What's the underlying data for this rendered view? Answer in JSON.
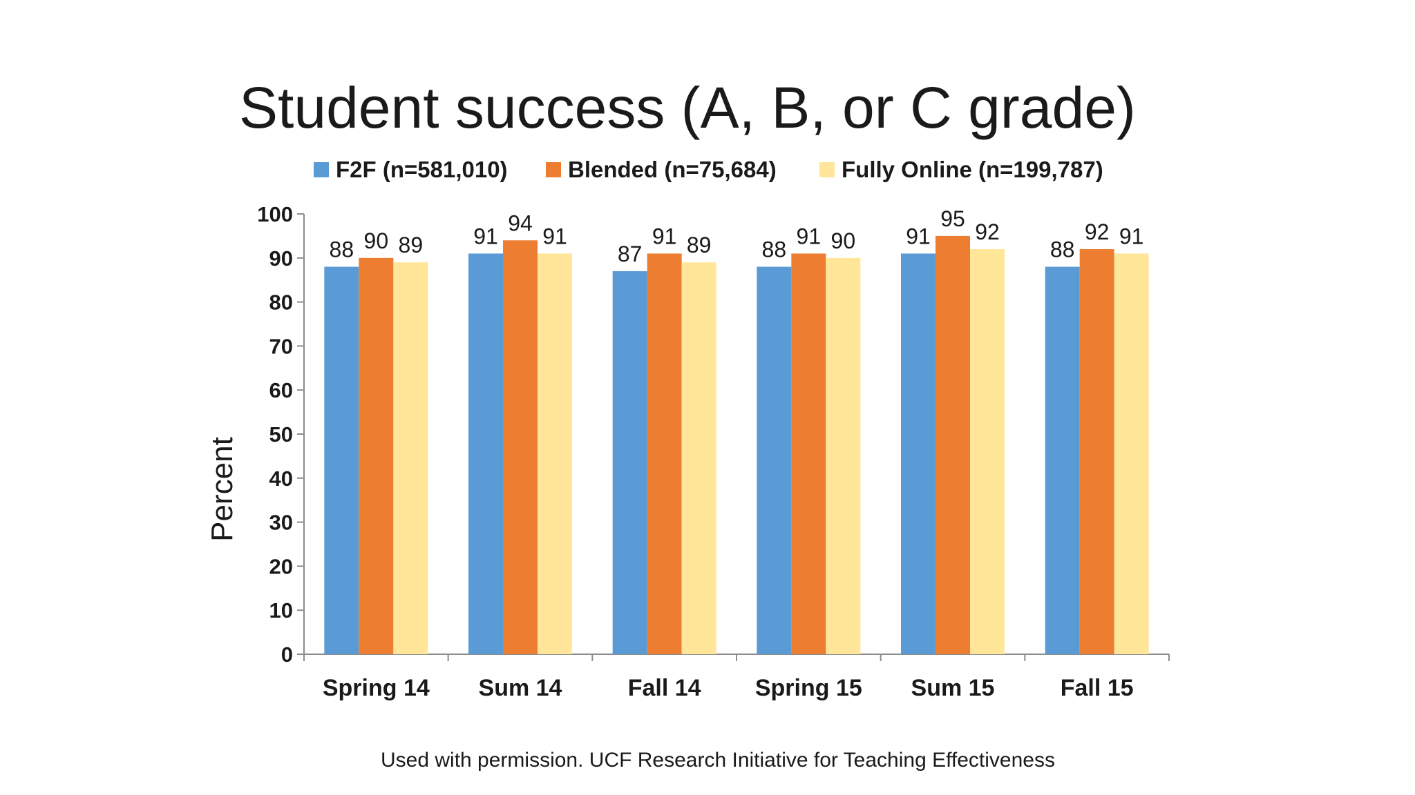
{
  "chart_data": {
    "type": "bar",
    "title": "Student success (A, B, or C grade)",
    "ylabel": "Percent",
    "xlabel": "",
    "ylim": [
      0,
      100
    ],
    "yticks": [
      0,
      10,
      20,
      30,
      40,
      50,
      60,
      70,
      80,
      90,
      100
    ],
    "categories": [
      "Spring 14",
      "Sum 14",
      "Fall 14",
      "Spring 15",
      "Sum 15",
      "Fall 15"
    ],
    "series": [
      {
        "name": "F2F (n=581,010)",
        "color": "#5B9BD5",
        "values": [
          88,
          91,
          87,
          88,
          91,
          88
        ]
      },
      {
        "name": "Blended (n=75,684)",
        "color": "#ED7D31",
        "values": [
          90,
          94,
          91,
          91,
          95,
          92
        ]
      },
      {
        "name": "Fully Online (n=199,787)",
        "color": "#FFE699",
        "values": [
          89,
          91,
          89,
          90,
          92,
          91
        ]
      }
    ],
    "legend_position": "top",
    "grid": false,
    "data_labels": true
  },
  "caption": "Used with permission. UCF Research Initiative for Teaching Effectiveness"
}
